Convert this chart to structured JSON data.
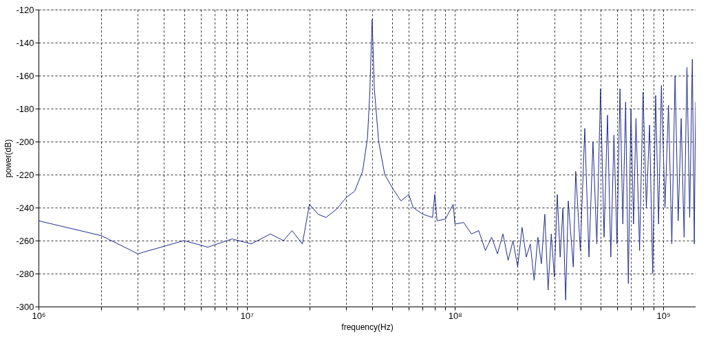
{
  "chart_data": {
    "type": "line",
    "xlabel": "frequency(Hz)",
    "ylabel": "power(dB)",
    "log": "x",
    "grid": true,
    "legend": false,
    "marker": "none",
    "line_style": "solid",
    "xlim": [
      1000000,
      1430000000
    ],
    "xticks": [
      {
        "value": 1000000,
        "label": "10⁶"
      },
      {
        "value": 2000000,
        "label": null
      },
      {
        "value": 3000000,
        "label": null
      },
      {
        "value": 4000000,
        "label": null
      },
      {
        "value": 5000000,
        "label": null
      },
      {
        "value": 6000000,
        "label": null
      },
      {
        "value": 7000000,
        "label": null
      },
      {
        "value": 8000000,
        "label": null
      },
      {
        "value": 9000000,
        "label": null
      },
      {
        "value": 10000000,
        "label": "10⁷"
      },
      {
        "value": 20000000,
        "label": null
      },
      {
        "value": 30000000,
        "label": null
      },
      {
        "value": 40000000,
        "label": null
      },
      {
        "value": 50000000,
        "label": null
      },
      {
        "value": 60000000,
        "label": null
      },
      {
        "value": 70000000,
        "label": null
      },
      {
        "value": 80000000,
        "label": null
      },
      {
        "value": 90000000,
        "label": null
      },
      {
        "value": 100000000,
        "label": "10⁸"
      },
      {
        "value": 200000000,
        "label": null
      },
      {
        "value": 300000000,
        "label": null
      },
      {
        "value": 400000000,
        "label": null
      },
      {
        "value": 500000000,
        "label": null
      },
      {
        "value": 600000000,
        "label": null
      },
      {
        "value": 700000000,
        "label": null
      },
      {
        "value": 800000000,
        "label": null
      },
      {
        "value": 900000000,
        "label": null
      },
      {
        "value": 1000000000,
        "label": "10⁹"
      }
    ],
    "ylim": [
      -300,
      -120
    ],
    "yticks": [
      -300,
      -280,
      -260,
      -240,
      -220,
      -200,
      -180,
      -160,
      -140,
      -120
    ],
    "series": [
      {
        "color": "#1f2a8c",
        "x": [
          1000000,
          2000000,
          3000000,
          5000000,
          6500000,
          8500000,
          10500000,
          13000000,
          15000000,
          16500000,
          18500000,
          20000000,
          22000000,
          24000000,
          27000000,
          30000000,
          33000000,
          36000000,
          38000000,
          39000000,
          40000000,
          41000000,
          43000000,
          46000000,
          50000000,
          55000000,
          60000000,
          63000000,
          70000000,
          78000000,
          80000000,
          82000000,
          90000000,
          98000000,
          100000000,
          110000000,
          120000000,
          130000000,
          140000000,
          150000000,
          160000000,
          170000000,
          180000000,
          190000000,
          200000000,
          210000000,
          220000000,
          230000000,
          240000000,
          250000000,
          260000000,
          270000000,
          280000000,
          290000000,
          300000000,
          310000000,
          320000000,
          330000000,
          340000000,
          350000000,
          370000000,
          380000000,
          400000000,
          420000000,
          440000000,
          460000000,
          480000000,
          500000000,
          520000000,
          540000000,
          560000000,
          580000000,
          600000000,
          620000000,
          640000000,
          660000000,
          680000000,
          700000000,
          720000000,
          740000000,
          770000000,
          800000000,
          830000000,
          860000000,
          890000000,
          920000000,
          950000000,
          980000000,
          1020000000,
          1060000000,
          1100000000,
          1140000000,
          1180000000,
          1220000000,
          1260000000,
          1300000000,
          1340000000,
          1380000000,
          1410000000,
          1430000000
        ],
        "values": [
          -248,
          -257,
          -268,
          -260,
          -264,
          -259,
          -262,
          -256,
          -260,
          -254,
          -262,
          -238,
          -244,
          -246,
          -241,
          -234,
          -230,
          -218,
          -198,
          -170,
          -126,
          -168,
          -200,
          -220,
          -228,
          -236,
          -232,
          -240,
          -244,
          -246,
          -232,
          -248,
          -247,
          -238,
          -250,
          -249,
          -256,
          -254,
          -266,
          -258,
          -268,
          -256,
          -272,
          -260,
          -276,
          -252,
          -270,
          -262,
          -284,
          -258,
          -274,
          -244,
          -290,
          -256,
          -282,
          -232,
          -270,
          -240,
          -296,
          -236,
          -276,
          -218,
          -266,
          -192,
          -270,
          -200,
          -262,
          -168,
          -258,
          -184,
          -270,
          -196,
          -262,
          -168,
          -250,
          -176,
          -286,
          -180,
          -250,
          -186,
          -266,
          -170,
          -240,
          -190,
          -280,
          -172,
          -250,
          -166,
          -240,
          -178,
          -262,
          -160,
          -248,
          -186,
          -258,
          -155,
          -246,
          -150,
          -262,
          -176
        ]
      }
    ]
  }
}
